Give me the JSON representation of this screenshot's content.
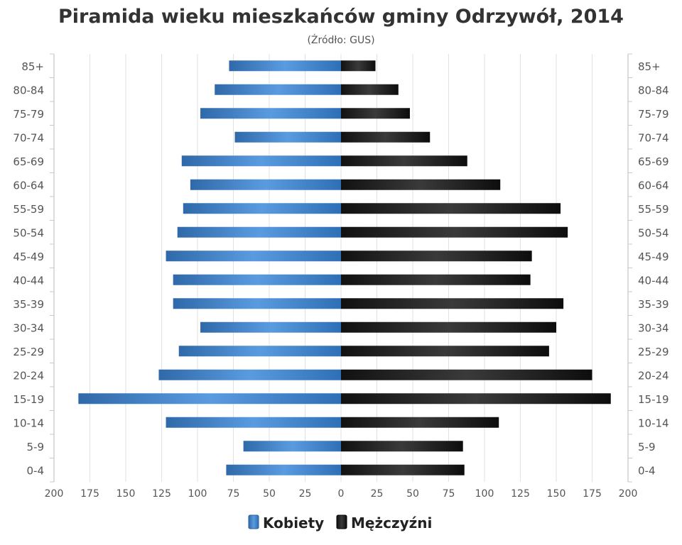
{
  "chart_data": {
    "type": "bar",
    "orientation": "horizontal",
    "title": "Piramida wieku mieszkańców gminy Odrzywół, 2014",
    "subtitle": "(Źródło: GUS)",
    "categories": [
      "0-4",
      "5-9",
      "10-14",
      "15-19",
      "20-24",
      "25-29",
      "30-34",
      "35-39",
      "40-44",
      "45-49",
      "50-54",
      "55-59",
      "60-64",
      "65-69",
      "70-74",
      "75-79",
      "80-84",
      "85+"
    ],
    "series": [
      {
        "name": "Kobiety",
        "side": "left",
        "color": "#3d7dc2",
        "values": [
          80,
          68,
          122,
          183,
          127,
          113,
          98,
          117,
          117,
          122,
          114,
          110,
          105,
          111,
          74,
          98,
          88,
          78
        ]
      },
      {
        "name": "Mężczyźni",
        "side": "right",
        "color": "#1a1a1a",
        "values": [
          86,
          85,
          110,
          188,
          175,
          145,
          150,
          155,
          132,
          133,
          158,
          153,
          111,
          88,
          62,
          48,
          40,
          24
        ]
      }
    ],
    "xlim": [
      -200,
      200
    ],
    "x_ticks": [
      "200",
      "175",
      "150",
      "125",
      "100",
      "75",
      "50",
      "25",
      "0",
      "25",
      "50",
      "75",
      "100",
      "125",
      "150",
      "175",
      "200"
    ],
    "grid": true,
    "legend": "bottom"
  }
}
